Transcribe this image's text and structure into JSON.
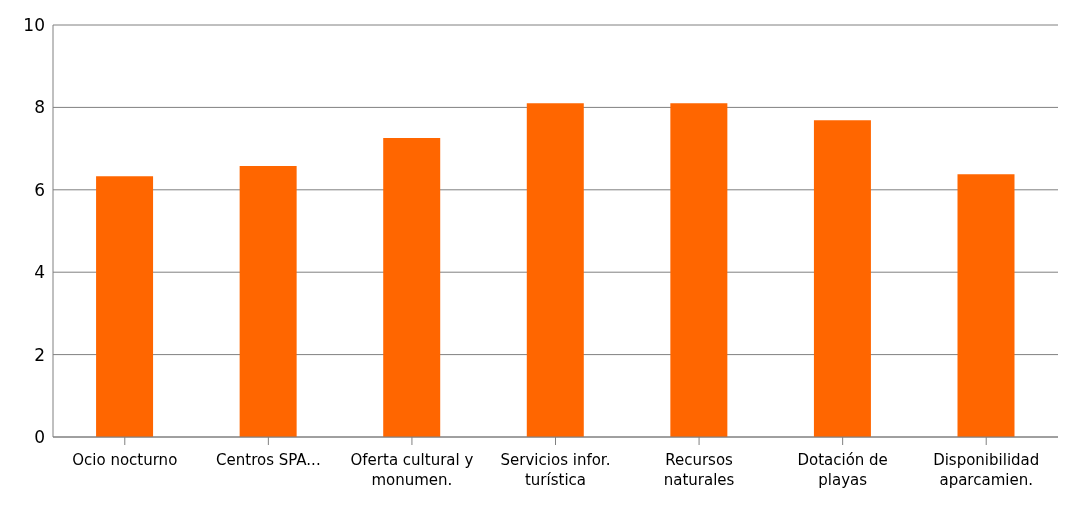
{
  "chart_data": {
    "type": "bar",
    "categories": [
      "Ocio nocturno",
      "Centros SPA...",
      "Oferta cultural y monumen.",
      "Servicios infor. turística",
      "Recursos naturales",
      "Dotación de playas",
      "Disponibilidad aparcamien."
    ],
    "values": [
      6.33,
      6.58,
      7.26,
      8.1,
      8.1,
      7.69,
      6.38
    ],
    "color": "#ff6600",
    "ylim": [
      0,
      10
    ],
    "yticks": [
      0,
      2,
      4,
      6,
      8,
      10
    ],
    "grid": "y"
  }
}
